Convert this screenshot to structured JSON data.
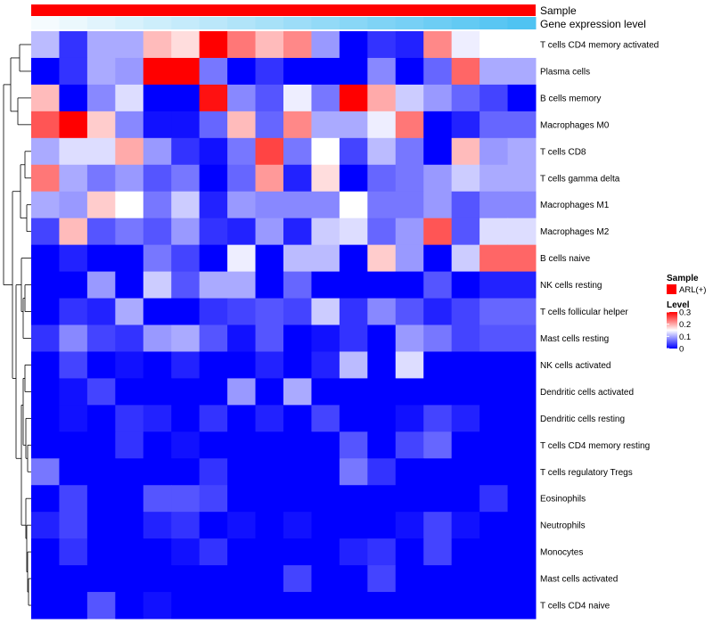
{
  "chart_data": {
    "type": "heatmap",
    "annotation_tracks": [
      {
        "label": "Sample",
        "color": "#ff0000"
      },
      {
        "label": "Gene expression level",
        "gradient": [
          "#f5fbfe",
          "#4fc3f2"
        ]
      }
    ],
    "columns": 18,
    "rows": [
      "T cells CD4 memory activated",
      "Plasma cells",
      "B cells memory",
      "Macrophages M0",
      "T cells CD8",
      "T cells gamma delta",
      "Macrophages M1",
      "Macrophages M2",
      "B cells naive",
      "NK cells resting",
      "T cells follicular helper",
      "Mast cells resting",
      "NK cells activated",
      "Dendritic cells activated",
      "Dendritic cells resting",
      "T cells CD4 memory resting",
      "T cells regulatory  Tregs",
      "Eosinophils",
      "Neutrophils",
      "Monocytes",
      "Mast cells activated",
      "T cells CD4 naive"
    ],
    "values": [
      [
        0.11,
        0.03,
        0.1,
        0.1,
        0.19,
        0.17,
        0.3,
        0.23,
        0.19,
        0.22,
        0.09,
        0.0,
        0.03,
        0.02,
        0.22,
        0.14,
        0.15,
        0.15
      ],
      [
        0.0,
        0.03,
        0.1,
        0.09,
        0.3,
        0.3,
        0.07,
        0.0,
        0.03,
        0.0,
        0.0,
        0.0,
        0.08,
        0.0,
        0.06,
        0.24,
        0.1,
        0.1
      ],
      [
        0.19,
        0.0,
        0.08,
        0.13,
        0.0,
        0.0,
        0.29,
        0.08,
        0.05,
        0.14,
        0.07,
        0.3,
        0.2,
        0.12,
        0.09,
        0.06,
        0.04,
        0.0
      ],
      [
        0.25,
        0.3,
        0.18,
        0.08,
        0.01,
        0.01,
        0.06,
        0.19,
        0.06,
        0.22,
        0.1,
        0.1,
        0.14,
        0.23,
        0.0,
        0.02,
        0.06,
        0.06
      ],
      [
        0.1,
        0.13,
        0.13,
        0.2,
        0.09,
        0.03,
        0.01,
        0.07,
        0.26,
        0.07,
        0.15,
        0.04,
        0.11,
        0.07,
        0.0,
        0.19,
        0.09,
        0.1
      ],
      [
        0.23,
        0.1,
        0.07,
        0.09,
        0.05,
        0.07,
        0.0,
        0.06,
        0.21,
        0.02,
        0.17,
        0.0,
        0.06,
        0.07,
        0.09,
        0.12,
        0.1,
        0.1
      ],
      [
        0.1,
        0.09,
        0.18,
        0.15,
        0.07,
        0.12,
        0.02,
        0.09,
        0.08,
        0.08,
        0.08,
        0.15,
        0.07,
        0.07,
        0.09,
        0.05,
        0.08,
        0.08
      ],
      [
        0.04,
        0.19,
        0.05,
        0.07,
        0.05,
        0.09,
        0.03,
        0.02,
        0.09,
        0.02,
        0.12,
        0.13,
        0.06,
        0.09,
        0.25,
        0.05,
        0.13,
        0.13
      ],
      [
        0.0,
        0.02,
        0.0,
        0.0,
        0.07,
        0.04,
        0.0,
        0.14,
        0.0,
        0.11,
        0.11,
        0.0,
        0.18,
        0.09,
        0.0,
        0.12,
        0.24,
        0.24
      ],
      [
        0.0,
        0.0,
        0.09,
        0.0,
        0.12,
        0.05,
        0.1,
        0.1,
        0.0,
        0.06,
        0.0,
        0.0,
        0.0,
        0.0,
        0.05,
        0.0,
        0.02,
        0.02
      ],
      [
        0.0,
        0.03,
        0.02,
        0.1,
        0.0,
        0.0,
        0.03,
        0.04,
        0.05,
        0.04,
        0.12,
        0.03,
        0.08,
        0.05,
        0.02,
        0.04,
        0.06,
        0.06
      ],
      [
        0.03,
        0.08,
        0.04,
        0.03,
        0.09,
        0.1,
        0.05,
        0.01,
        0.05,
        0.0,
        0.01,
        0.03,
        0.0,
        0.09,
        0.07,
        0.04,
        0.05,
        0.05
      ],
      [
        0.0,
        0.04,
        0.0,
        0.01,
        0.0,
        0.02,
        0.0,
        0.0,
        0.02,
        0.0,
        0.02,
        0.11,
        0.0,
        0.13,
        0.0,
        0.0,
        0.0,
        0.0
      ],
      [
        0.0,
        0.01,
        0.04,
        0.0,
        0.0,
        0.0,
        0.0,
        0.09,
        0.0,
        0.1,
        0.0,
        0.0,
        0.0,
        0.0,
        0.0,
        0.0,
        0.0,
        0.0
      ],
      [
        0.0,
        0.01,
        0.0,
        0.03,
        0.02,
        0.0,
        0.03,
        0.0,
        0.02,
        0.0,
        0.04,
        0.0,
        0.0,
        0.01,
        0.04,
        0.02,
        0.0,
        0.0
      ],
      [
        0.0,
        0.0,
        0.0,
        0.03,
        0.0,
        0.01,
        0.0,
        0.0,
        0.0,
        0.0,
        0.0,
        0.05,
        0.0,
        0.04,
        0.06,
        0.0,
        0.0,
        0.0
      ],
      [
        0.07,
        0.0,
        0.0,
        0.0,
        0.0,
        0.0,
        0.03,
        0.0,
        0.0,
        0.0,
        0.0,
        0.07,
        0.03,
        0.0,
        0.0,
        0.0,
        0.0,
        0.0
      ],
      [
        0.0,
        0.04,
        0.0,
        0.0,
        0.05,
        0.05,
        0.04,
        0.0,
        0.0,
        0.0,
        0.0,
        0.0,
        0.0,
        0.0,
        0.0,
        0.0,
        0.03,
        0.0
      ],
      [
        0.02,
        0.04,
        0.0,
        0.0,
        0.02,
        0.03,
        0.0,
        0.01,
        0.0,
        0.01,
        0.0,
        0.0,
        0.0,
        0.01,
        0.04,
        0.01,
        0.0,
        0.0
      ],
      [
        0.0,
        0.03,
        0.0,
        0.0,
        0.0,
        0.01,
        0.03,
        0.0,
        0.0,
        0.0,
        0.0,
        0.02,
        0.03,
        0.0,
        0.04,
        0.0,
        0.0,
        0.0
      ],
      [
        0.0,
        0.0,
        0.0,
        0.0,
        0.0,
        0.0,
        0.0,
        0.0,
        0.0,
        0.04,
        0.0,
        0.0,
        0.04,
        0.0,
        0.0,
        0.0,
        0.0,
        0.0
      ],
      [
        0.0,
        0.0,
        0.05,
        0.0,
        0.01,
        0.0,
        0.0,
        0.0,
        0.0,
        0.0,
        0.0,
        0.0,
        0.0,
        0.0,
        0.0,
        0.0,
        0.0,
        0.0
      ]
    ],
    "column_expression_level": [
      0.0,
      0.06,
      0.12,
      0.18,
      0.24,
      0.29,
      0.35,
      0.41,
      0.47,
      0.53,
      0.59,
      0.65,
      0.71,
      0.76,
      0.82,
      0.88,
      0.94,
      1.0
    ],
    "color_scale": {
      "min": 0,
      "mid": 0.15,
      "max": 0.3,
      "colors": [
        "#0000ff",
        "#ffffff",
        "#ff0000"
      ]
    },
    "legend": {
      "sample_title": "Sample",
      "sample_entry": "ARL(+)",
      "sample_color": "#ff0000",
      "level_title": "Level",
      "ticks": [
        {
          "value": 0.3,
          "label": "0.3"
        },
        {
          "value": 0.2,
          "label": "0.2"
        },
        {
          "value": 0.1,
          "label": "0.1"
        },
        {
          "value": 0,
          "label": "0"
        }
      ]
    },
    "row_dendrogram": true
  }
}
